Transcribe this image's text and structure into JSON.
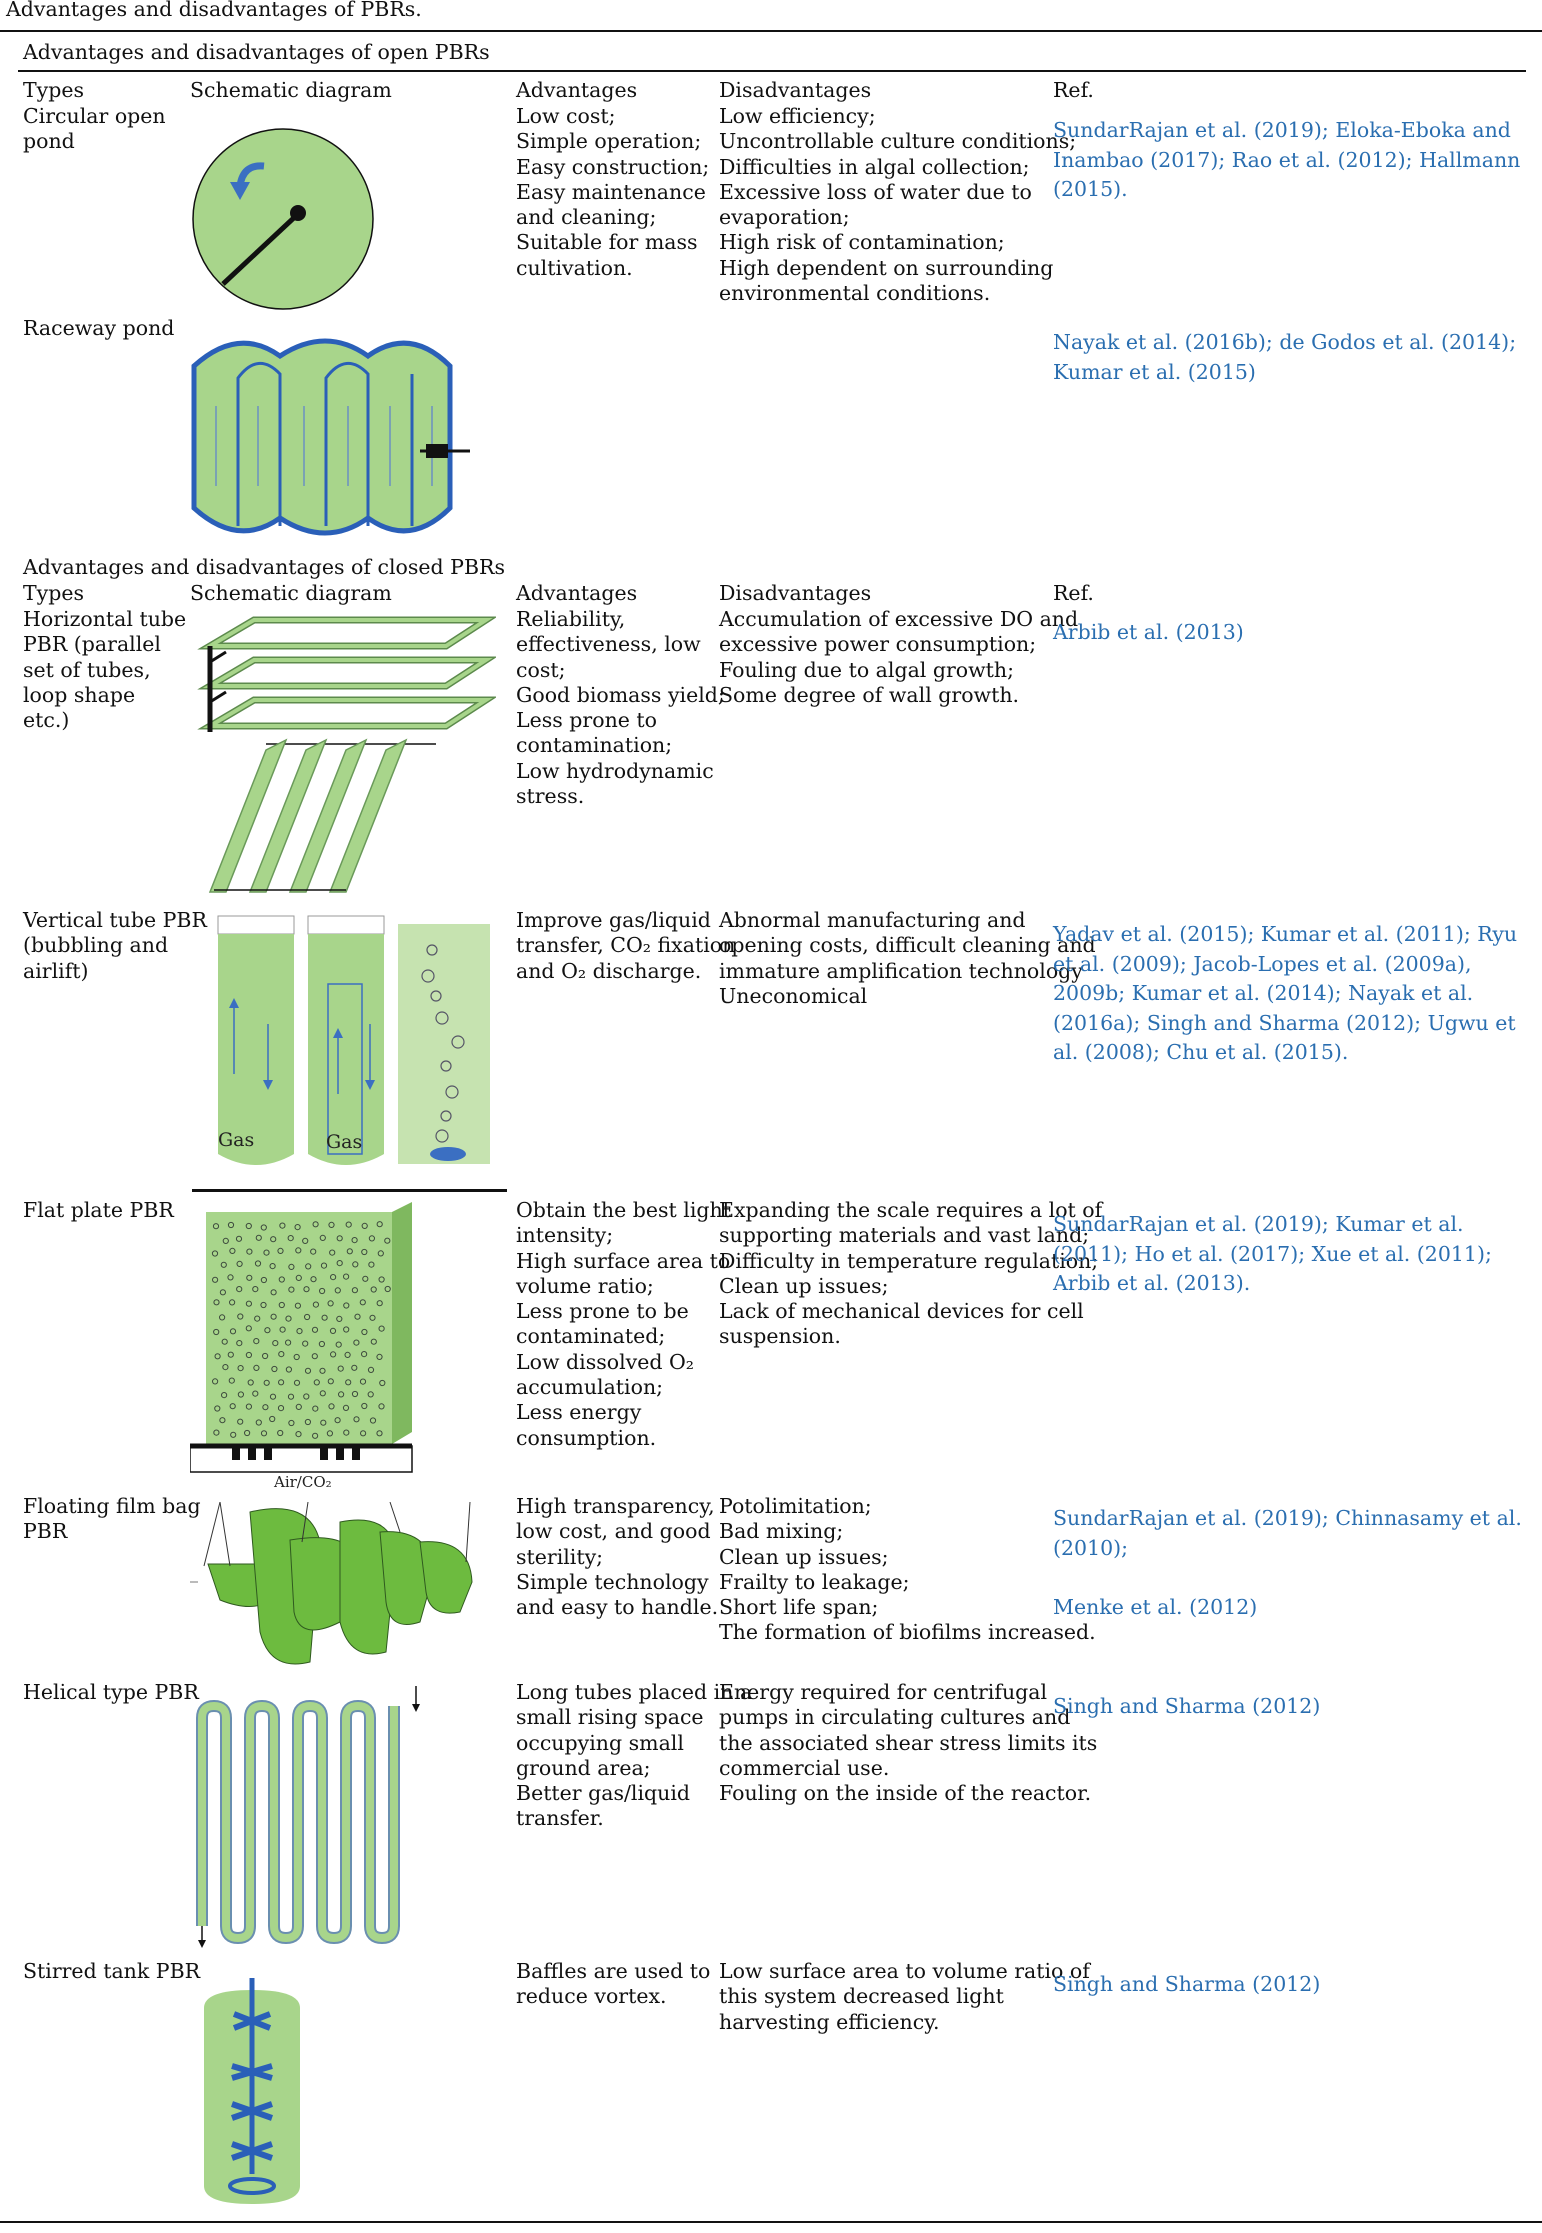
{
  "caption": "Advantages and disadvantages of PBRs.",
  "open_section_title": "Advantages and disadvantages of open PBRs",
  "closed_section_title": "Advantages and disadvantages of closed PBRs",
  "headers": {
    "types": "Types",
    "schematic": "Schematic diagram",
    "advantages": "Advantages",
    "disadvantages": "Disadvantages",
    "ref": "Ref."
  },
  "rows": [
    {
      "type": "Circular open\npond",
      "advantages": "Low cost;\nSimple operation;\nEasy construction;\nEasy maintenance\nand cleaning;\nSuitable for mass\ncultivation.",
      "disadvantages": "Low efficiency;\nUncontrollable culture conditions;\nDifficulties in algal collection;\nExcessive loss of water due to\nevaporation;\nHigh risk of contamination;\nHigh dependent on surrounding\nenvironmental conditions.",
      "refs": [
        "SundarRajan et al. (2019)",
        "Eloka-Eboka and Inambao (2017)",
        "Rao et al. (2012)",
        "Hallmann (2015)"
      ]
    },
    {
      "type": "Raceway pond",
      "advantages": "",
      "disadvantages": "",
      "refs": [
        "Nayak et al. (2016b)",
        "de Godos et al. (2014)",
        "Kumar et al. (2015)"
      ]
    },
    {
      "type": "Horizontal tube\nPBR (parallel\nset of tubes,\nloop shape\netc.)",
      "advantages": "Reliability,\neffectiveness, low\ncost;\nGood biomass yield;\nLess prone to\ncontamination;\nLow hydrodynamic\nstress.",
      "disadvantages": "Accumulation of excessive DO and\nexcessive power consumption;\nFouling due to algal growth;\nSome degree of wall growth.",
      "refs": [
        "Arbib et al. (2013)"
      ]
    },
    {
      "type": "Vertical tube PBR\n(bubbling and\nairlift)",
      "advantages": "Improve gas/liquid\ntransfer, CO₂ fixation\nand O₂ discharge.",
      "disadvantages": "Abnormal manufacturing and\nopening costs, difficult cleaning and\nimmature amplification technology\nUneconomical",
      "refs": [
        "Yadav et al. (2015)",
        "Kumar et al. (2011)",
        "Ryu et al. (2009)",
        "Jacob-Lopes et al. (2009a)",
        "2009b",
        "Kumar et al. (2014)",
        "Nayak et al. (2016a)",
        "Singh and Sharma (2012)",
        "Ugwu et al. (2008)",
        "Chu et al. (2015)"
      ],
      "diagram_labels": [
        "Gas",
        "Gas"
      ]
    },
    {
      "type": "Flat plate PBR",
      "advantages": "Obtain the best light\nintensity;\nHigh surface area to\nvolume ratio;\nLess prone to be\ncontaminated;\nLow dissolved O₂\naccumulation;\nLess energy\nconsumption.",
      "disadvantages": "Expanding the scale requires a lot of\nsupporting materials and vast land;\nDifficulty in temperature regulation;\nClean up issues;\nLack of mechanical devices for cell\nsuspension.",
      "refs": [
        "SundarRajan et al. (2019)",
        "Kumar et al. (2011)",
        "Ho et al. (2017)",
        "Xue et al. (2011)",
        "Arbib et al. (2013)"
      ],
      "diagram_labels": [
        "Air/CO₂"
      ]
    },
    {
      "type": "Floating film bag\nPBR",
      "advantages": "High transparency,\nlow cost, and good\nsterility;\nSimple technology\nand easy to handle.",
      "disadvantages": "Potolimitation;\nBad mixing;\nClean up issues;\nFrailty to leakage;\nShort life span;\nThe formation of biofilms increased.",
      "refs": [
        "SundarRajan et al. (2019)",
        "Chinnasamy et al. (2010)",
        "Menke et al. (2012)"
      ]
    },
    {
      "type": "Helical type PBR",
      "advantages": "Long tubes placed in a\nsmall rising space\noccupying small\nground area;\nBetter gas/liquid\ntransfer.",
      "disadvantages": "Energy required for centrifugal\npumps in circulating cultures and\nthe associated shear stress limits its\ncommercial use.\nFouling on the inside of the reactor.",
      "refs": [
        "Singh and Sharma (2012)"
      ]
    },
    {
      "type": "Stirred tank PBR",
      "advantages": "Baffles are used to\nreduce vortex.",
      "disadvantages": "Low surface area to volume ratio of\nthis system decreased light\nharvesting efficiency.",
      "refs": [
        "Singh and Sharma (2012)"
      ]
    }
  ]
}
